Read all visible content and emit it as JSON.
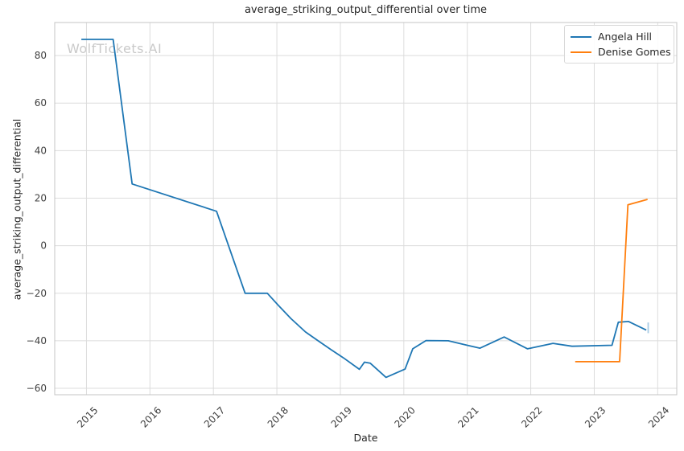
{
  "watermark": "WolfTickets.AI",
  "colors": {
    "angela_hill_line": "#1f77b4",
    "denise_gomes_line": "#ff7f0e",
    "error_bar": "#a9cce5",
    "grid": "#dcdcdc",
    "spine": "#c4c4c4",
    "text": "#262626",
    "tick_text": "#404040",
    "watermark_text": "#c9c9c9"
  },
  "chart_data": {
    "type": "line",
    "title": "average_striking_output_differential over time",
    "xlabel": "Date",
    "ylabel": "average_striking_output_differential",
    "xlim": [
      2014.5,
      2024.3
    ],
    "ylim": [
      -62.7,
      93.9
    ],
    "grid": true,
    "legend_position": "upper right",
    "x_ticks": [
      2015,
      2016,
      2017,
      2018,
      2019,
      2020,
      2021,
      2022,
      2023,
      2024
    ],
    "x_tick_labels": [
      "2015",
      "2016",
      "2017",
      "2018",
      "2019",
      "2020",
      "2021",
      "2022",
      "2023",
      "2024"
    ],
    "y_ticks": [
      80,
      60,
      40,
      20,
      0,
      -20,
      -40,
      -60
    ],
    "y_tick_labels": [
      "80",
      "60",
      "40",
      "20",
      "0",
      "−20",
      "−40",
      "−60"
    ],
    "series": [
      {
        "name": "Angela Hill",
        "color": "#1f77b4",
        "points": [
          [
            2014.92,
            86.8
          ],
          [
            2015.42,
            86.8
          ],
          [
            2015.72,
            26.0
          ],
          [
            2017.05,
            14.5
          ],
          [
            2017.5,
            -20.0
          ],
          [
            2017.85,
            -20.0
          ],
          [
            2018.02,
            -25.0
          ],
          [
            2018.22,
            -30.6
          ],
          [
            2018.45,
            -36.3
          ],
          [
            2018.65,
            -40.0
          ],
          [
            2018.85,
            -43.7
          ],
          [
            2019.05,
            -47.2
          ],
          [
            2019.3,
            -52.0
          ],
          [
            2019.38,
            -49.0
          ],
          [
            2019.47,
            -49.4
          ],
          [
            2019.72,
            -55.4
          ],
          [
            2020.02,
            -51.9
          ],
          [
            2020.14,
            -43.4
          ],
          [
            2020.35,
            -39.9
          ],
          [
            2020.7,
            -40.0
          ],
          [
            2021.0,
            -41.9
          ],
          [
            2021.2,
            -43.1
          ],
          [
            2021.58,
            -38.4
          ],
          [
            2021.95,
            -43.4
          ],
          [
            2022.35,
            -41.1
          ],
          [
            2022.65,
            -42.3
          ],
          [
            2023.28,
            -41.9
          ],
          [
            2023.38,
            -32.2
          ],
          [
            2023.54,
            -31.9
          ],
          [
            2023.82,
            -35.5
          ]
        ]
      },
      {
        "name": "Denise Gomes",
        "color": "#ff7f0e",
        "points": [
          [
            2022.7,
            -48.8
          ],
          [
            2023.4,
            -48.8
          ],
          [
            2023.53,
            17.2
          ],
          [
            2023.84,
            19.5
          ]
        ]
      }
    ],
    "error_bar": {
      "series": "Angela Hill",
      "x": 2023.85,
      "y_low": -36.8,
      "y_high": -32.3,
      "color": "#a9cce5"
    }
  }
}
